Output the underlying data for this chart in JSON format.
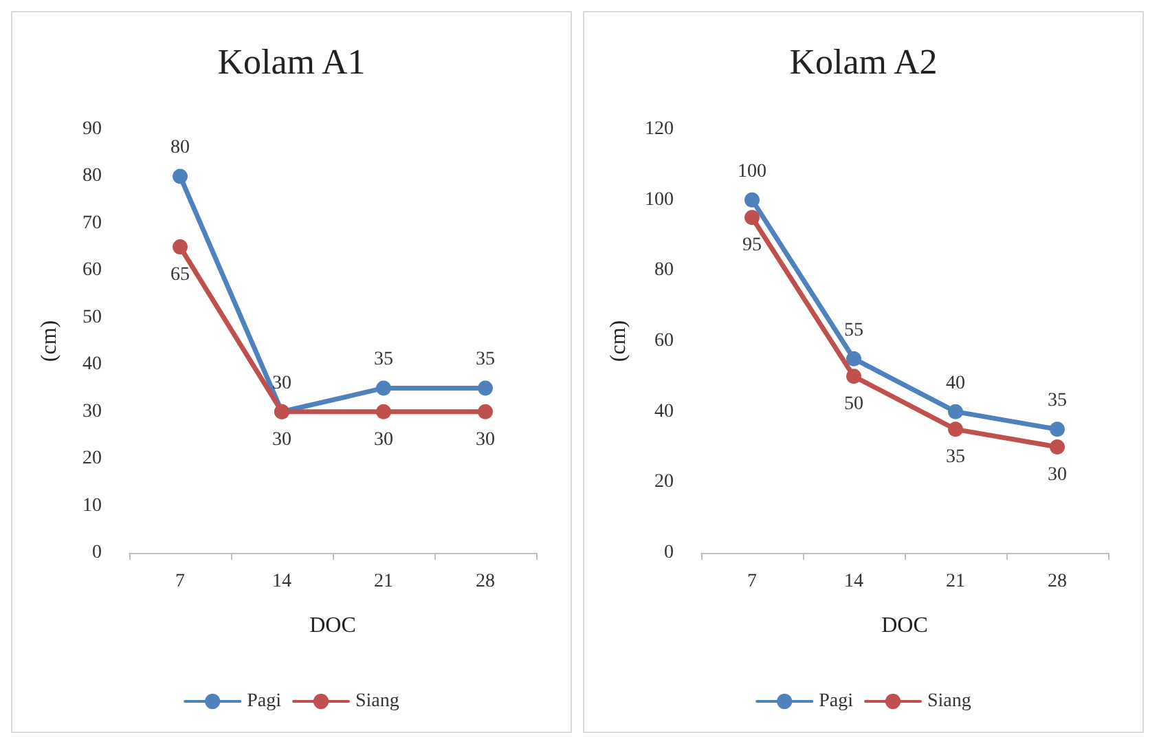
{
  "chart_data": [
    {
      "type": "line",
      "title": "Kolam A1",
      "xlabel": "DOC",
      "ylabel": "(cm)",
      "categories": [
        "7",
        "14",
        "21",
        "28"
      ],
      "series": [
        {
          "name": "Pagi",
          "color": "#4f81bd",
          "values": [
            80,
            30,
            35,
            35
          ]
        },
        {
          "name": "Siang",
          "color": "#c0504d",
          "values": [
            65,
            30,
            30,
            30
          ]
        }
      ],
      "ylim": [
        0,
        90
      ],
      "yticks": [
        0,
        10,
        20,
        30,
        40,
        50,
        60,
        70,
        80,
        90
      ],
      "grid": false,
      "legend": "bottom",
      "marker": "circle",
      "line_style": "solid",
      "data_labels": true
    },
    {
      "type": "line",
      "title": "Kolam A2",
      "xlabel": "DOC",
      "ylabel": "(cm)",
      "categories": [
        "7",
        "14",
        "21",
        "28"
      ],
      "series": [
        {
          "name": "Pagi",
          "color": "#4f81bd",
          "values": [
            100,
            55,
            40,
            35
          ]
        },
        {
          "name": "Siang",
          "color": "#c0504d",
          "values": [
            95,
            50,
            35,
            30
          ]
        }
      ],
      "ylim": [
        0,
        120
      ],
      "yticks": [
        0,
        20,
        40,
        60,
        80,
        100,
        120
      ],
      "grid": false,
      "legend": "bottom",
      "marker": "circle",
      "line_style": "solid",
      "data_labels": true
    }
  ]
}
